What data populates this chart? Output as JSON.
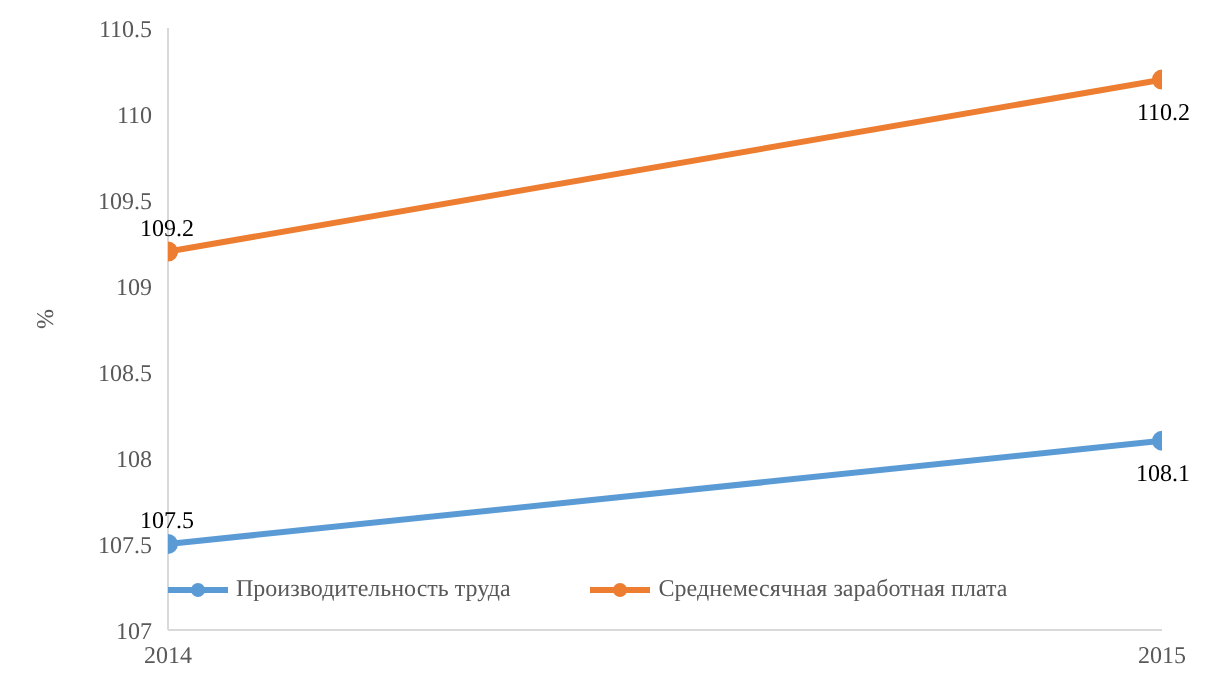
{
  "chart_data": {
    "type": "line",
    "ylabel": "%",
    "x": [
      2014,
      2015
    ],
    "xlim": [
      2014,
      2015
    ],
    "xticks": [
      2014,
      2015
    ],
    "ylim": [
      107,
      110.5
    ],
    "yticks": [
      107,
      107.5,
      108,
      108.5,
      109,
      109.5,
      110,
      110.5
    ],
    "series": [
      {
        "name": "Производительность труда",
        "color": "#5b9bd5",
        "values": [
          107.5,
          108.1
        ]
      },
      {
        "name": "Среднемесячная заработная плата",
        "color": "#ed7d31",
        "values": [
          109.2,
          110.2
        ]
      }
    ],
    "data_labels": true,
    "grid": false,
    "legend": "bottom left",
    "marker": "circle",
    "line_style": "solid"
  }
}
